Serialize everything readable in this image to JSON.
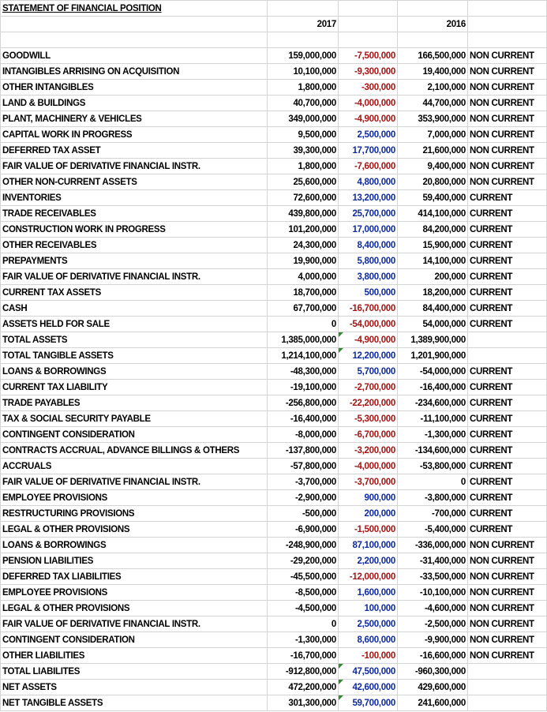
{
  "title": "STATEMENT OF FINANCIAL POSITION",
  "headers": {
    "year_a": "2017",
    "year_b": "2016"
  },
  "rows": [
    {
      "label": "GOODWILL",
      "v2017": "159,000,000",
      "change": "-7,500,000",
      "v2016": "166,500,000",
      "cls": "NON CURRENT",
      "bold": false
    },
    {
      "label": "INTANGIBLES ARRISING ON ACQUISITION",
      "v2017": "10,100,000",
      "change": "-9,300,000",
      "v2016": "19,400,000",
      "cls": "NON CURRENT",
      "bold": false
    },
    {
      "label": "OTHER INTANGIBLES",
      "v2017": "1,800,000",
      "change": "-300,000",
      "v2016": "2,100,000",
      "cls": "NON CURRENT",
      "bold": false
    },
    {
      "label": "LAND & BUILDINGS",
      "v2017": "40,700,000",
      "change": "-4,000,000",
      "v2016": "44,700,000",
      "cls": "NON CURRENT",
      "bold": false
    },
    {
      "label": "PLANT, MACHINERY & VEHICLES",
      "v2017": "349,000,000",
      "change": "-4,900,000",
      "v2016": "353,900,000",
      "cls": "NON CURRENT",
      "bold": false
    },
    {
      "label": "CAPITAL WORK IN PROGRESS",
      "v2017": "9,500,000",
      "change": "2,500,000",
      "v2016": "7,000,000",
      "cls": "NON CURRENT",
      "bold": false
    },
    {
      "label": "DEFERRED TAX ASSET",
      "v2017": "39,300,000",
      "change": "17,700,000",
      "v2016": "21,600,000",
      "cls": "NON CURRENT",
      "bold": false
    },
    {
      "label": "FAIR VALUE OF DERIVATIVE FINANCIAL INSTR.",
      "v2017": "1,800,000",
      "change": "-7,600,000",
      "v2016": "9,400,000",
      "cls": "NON CURRENT",
      "bold": false
    },
    {
      "label": "OTHER NON-CURRENT ASSETS",
      "v2017": "25,600,000",
      "change": "4,800,000",
      "v2016": "20,800,000",
      "cls": "NON CURRENT",
      "bold": false
    },
    {
      "label": "INVENTORIES",
      "v2017": "72,600,000",
      "change": "13,200,000",
      "v2016": "59,400,000",
      "cls": "CURRENT",
      "bold": false
    },
    {
      "label": "TRADE RECEIVABLES",
      "v2017": "439,800,000",
      "change": "25,700,000",
      "v2016": "414,100,000",
      "cls": "CURRENT",
      "bold": false
    },
    {
      "label": "CONSTRUCTION WORK IN PROGRESS",
      "v2017": "101,200,000",
      "change": "17,000,000",
      "v2016": "84,200,000",
      "cls": "CURRENT",
      "bold": false
    },
    {
      "label": "OTHER RECEIVABLES",
      "v2017": "24,300,000",
      "change": "8,400,000",
      "v2016": "15,900,000",
      "cls": "CURRENT",
      "bold": false
    },
    {
      "label": "PREPAYMENTS",
      "v2017": "19,900,000",
      "change": "5,800,000",
      "v2016": "14,100,000",
      "cls": "CURRENT",
      "bold": false
    },
    {
      "label": "FAIR VALUE OF DERIVATIVE FINANCIAL INSTR.",
      "v2017": "4,000,000",
      "change": "3,800,000",
      "v2016": "200,000",
      "cls": "CURRENT",
      "bold": false
    },
    {
      "label": "CURRENT TAX ASSETS",
      "v2017": "18,700,000",
      "change": "500,000",
      "v2016": "18,200,000",
      "cls": "CURRENT",
      "bold": false
    },
    {
      "label": "CASH",
      "v2017": "67,700,000",
      "change": "-16,700,000",
      "v2016": "84,400,000",
      "cls": "CURRENT",
      "bold": false
    },
    {
      "label": "ASSETS HELD FOR SALE",
      "v2017": "0",
      "change": "-54,000,000",
      "v2016": "54,000,000",
      "cls": "CURRENT",
      "bold": false
    },
    {
      "label": "TOTAL ASSETS",
      "v2017": "1,385,000,000",
      "change": "-4,900,000",
      "v2016": "1,389,900,000",
      "cls": "",
      "bold": true,
      "flag": true
    },
    {
      "label": "TOTAL TANGIBLE ASSETS",
      "v2017": "1,214,100,000",
      "change": "12,200,000",
      "v2016": "1,201,900,000",
      "cls": "",
      "bold": true,
      "flag": true
    },
    {
      "label": "LOANS & BORROWINGS",
      "v2017": "-48,300,000",
      "change": "5,700,000",
      "v2016": "-54,000,000",
      "cls": "CURRENT",
      "bold": false
    },
    {
      "label": "CURRENT TAX LIABILITY",
      "v2017": "-19,100,000",
      "change": "-2,700,000",
      "v2016": "-16,400,000",
      "cls": "CURRENT",
      "bold": false
    },
    {
      "label": "TRADE PAYABLES",
      "v2017": "-256,800,000",
      "change": "-22,200,000",
      "v2016": "-234,600,000",
      "cls": "CURRENT",
      "bold": false
    },
    {
      "label": "TAX & SOCIAL SECURITY PAYABLE",
      "v2017": "-16,400,000",
      "change": "-5,300,000",
      "v2016": "-11,100,000",
      "cls": "CURRENT",
      "bold": false
    },
    {
      "label": "CONTINGENT CONSIDERATION",
      "v2017": "-8,000,000",
      "change": "-6,700,000",
      "v2016": "-1,300,000",
      "cls": "CURRENT",
      "bold": false
    },
    {
      "label": "CONTRACTS ACCRUAL, ADVANCE BILLINGS & OTHERS",
      "v2017": "-137,800,000",
      "change": "-3,200,000",
      "v2016": "-134,600,000",
      "cls": "CURRENT",
      "bold": false
    },
    {
      "label": "ACCRUALS",
      "v2017": "-57,800,000",
      "change": "-4,000,000",
      "v2016": "-53,800,000",
      "cls": "CURRENT",
      "bold": false
    },
    {
      "label": "FAIR VALUE OF DERIVATIVE FINANCIAL INSTR.",
      "v2017": "-3,700,000",
      "change": "-3,700,000",
      "v2016": "0",
      "cls": "CURRENT",
      "bold": false
    },
    {
      "label": "EMPLOYEE PROVISIONS",
      "v2017": "-2,900,000",
      "change": "900,000",
      "v2016": "-3,800,000",
      "cls": "CURRENT",
      "bold": false
    },
    {
      "label": "RESTRUCTURING PROVISIONS",
      "v2017": "-500,000",
      "change": "200,000",
      "v2016": "-700,000",
      "cls": "CURRENT",
      "bold": false
    },
    {
      "label": "LEGAL & OTHER PROVISIONS",
      "v2017": "-6,900,000",
      "change": "-1,500,000",
      "v2016": "-5,400,000",
      "cls": "CURRENT",
      "bold": false
    },
    {
      "label": "LOANS & BORROWINGS",
      "v2017": "-248,900,000",
      "change": "87,100,000",
      "v2016": "-336,000,000",
      "cls": "NON CURRENT",
      "bold": false
    },
    {
      "label": "PENSION LIABILITIES",
      "v2017": "-29,200,000",
      "change": "2,200,000",
      "v2016": "-31,400,000",
      "cls": "NON CURRENT",
      "bold": false
    },
    {
      "label": "DEFERRED TAX LIABILITIES",
      "v2017": "-45,500,000",
      "change": "-12,000,000",
      "v2016": "-33,500,000",
      "cls": "NON CURRENT",
      "bold": false
    },
    {
      "label": "EMPLOYEE PROVISIONS",
      "v2017": "-8,500,000",
      "change": "1,600,000",
      "v2016": "-10,100,000",
      "cls": "NON CURRENT",
      "bold": false
    },
    {
      "label": "LEGAL & OTHER PROVISIONS",
      "v2017": "-4,500,000",
      "change": "100,000",
      "v2016": "-4,600,000",
      "cls": "NON CURRENT",
      "bold": false
    },
    {
      "label": "FAIR VALUE OF DERIVATIVE FINANCIAL INSTR.",
      "v2017": "0",
      "change": "2,500,000",
      "v2016": "-2,500,000",
      "cls": "NON CURRENT",
      "bold": false
    },
    {
      "label": "CONTINGENT CONSIDERATION",
      "v2017": "-1,300,000",
      "change": "8,600,000",
      "v2016": "-9,900,000",
      "cls": "NON CURRENT",
      "bold": false
    },
    {
      "label": "OTHER LIABILITIES",
      "v2017": "-16,700,000",
      "change": "-100,000",
      "v2016": "-16,600,000",
      "cls": "NON CURRENT",
      "bold": false
    },
    {
      "label": "TOTAL LIABILITES",
      "v2017": "-912,800,000",
      "change": "47,500,000",
      "v2016": "-960,300,000",
      "cls": "",
      "bold": true,
      "flag": true
    },
    {
      "label": "NET ASSETS",
      "v2017": "472,200,000",
      "change": "42,600,000",
      "v2016": "429,600,000",
      "cls": "",
      "bold": true,
      "flag": true
    },
    {
      "label": "NET TANGIBLE ASSETS",
      "v2017": "301,300,000",
      "change": "59,700,000",
      "v2016": "241,600,000",
      "cls": "",
      "bold": true,
      "flag": true
    }
  ],
  "colors": {
    "negative_change": "#a31515",
    "positive_change": "#0e2a9e",
    "grid": "#d4d4d4",
    "flag_marker": "#2e8b2e"
  }
}
